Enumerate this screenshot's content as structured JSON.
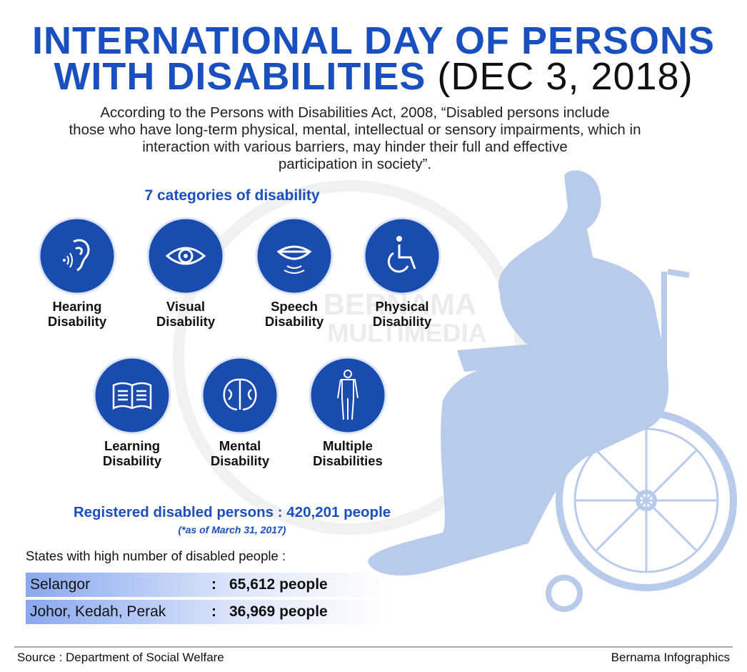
{
  "header": {
    "title_line1": "INTERNATIONAL DAY OF PERSONS",
    "title_line2": "WITH DISABILITIES",
    "date": "(DEC 3, 2018)"
  },
  "intro": [
    "According to the Persons with Disabilities Act, 2008, “Disabled persons include",
    "those who have long-term physical, mental, intellectual or sensory impairments, which in",
    "interaction with various barriers, may hinder their full and effective",
    "participation in society”."
  ],
  "watermark": [
    "BERNAMA",
    "MULTIMEDIA"
  ],
  "categories": {
    "heading": "7 categories of disability",
    "items": [
      {
        "label": "Hearing Disability"
      },
      {
        "label": "Visual Disability"
      },
      {
        "label": "Speech Disability"
      },
      {
        "label": "Physical Disability"
      },
      {
        "label": "Learning Disability"
      },
      {
        "label": "Mental Disability"
      },
      {
        "label": "Multiple Disabilities"
      }
    ]
  },
  "registered": {
    "text": "Registered disabled persons : 420,201 people",
    "note": "(*as of March 31, 2017)"
  },
  "states": {
    "heading": "States with high number of disabled people :",
    "rows": [
      [
        "Selangor",
        ":",
        "65,612 people"
      ],
      [
        "Johor, Kedah, Perak",
        ":",
        "36,969 people"
      ]
    ]
  },
  "footer": {
    "source": "Source : Department of Social Welfare",
    "credit": "Bernama Infographics"
  }
}
